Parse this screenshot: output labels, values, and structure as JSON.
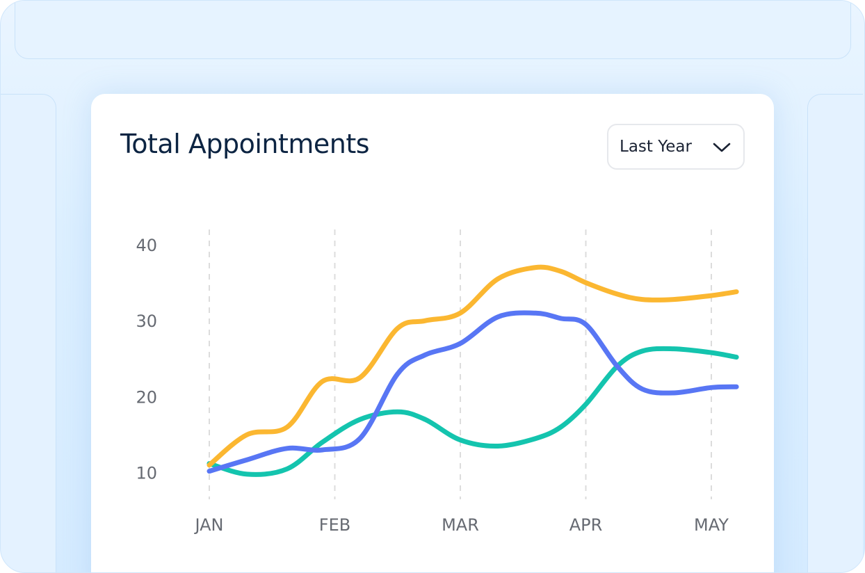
{
  "card": {
    "title": "Total Appointments",
    "period_select": {
      "value": "Last Year",
      "icon": "chevron-down-icon"
    }
  },
  "chart_data": {
    "type": "line",
    "title": "Total Appointments",
    "categories": [
      "JAN",
      "FEB",
      "MAR",
      "APR",
      "MAY"
    ],
    "x": [
      0,
      0.3,
      0.62,
      0.9,
      1.2,
      1.5,
      1.72,
      2.0,
      2.3,
      2.6,
      2.8,
      3.0,
      3.25,
      3.45,
      3.7,
      4.0,
      4.2
    ],
    "y_ticks": [
      10,
      20,
      30,
      40
    ],
    "ylim": [
      6.5,
      42
    ],
    "grid": {
      "x": "dashed vertical",
      "y": false
    },
    "legend": "none",
    "series": [
      {
        "color": "#fbb731",
        "values": [
          11,
          15,
          16,
          22,
          22.5,
          29,
          30,
          31,
          35.5,
          37,
          36.5,
          35,
          33.5,
          32.8,
          32.8,
          33.3,
          33.8
        ]
      },
      {
        "color": "#5876f4",
        "values": [
          10.2,
          11.7,
          13.2,
          13,
          14.5,
          23,
          25.5,
          27,
          30.5,
          31,
          30.3,
          29.5,
          24,
          21,
          20.5,
          21.2,
          21.3
        ]
      },
      {
        "color": "#14c4ae",
        "values": [
          11.2,
          9.8,
          10.5,
          14,
          17,
          18,
          17,
          14.3,
          13.5,
          14.5,
          16,
          19,
          24,
          26,
          26.3,
          25.8,
          25.2
        ]
      }
    ]
  }
}
